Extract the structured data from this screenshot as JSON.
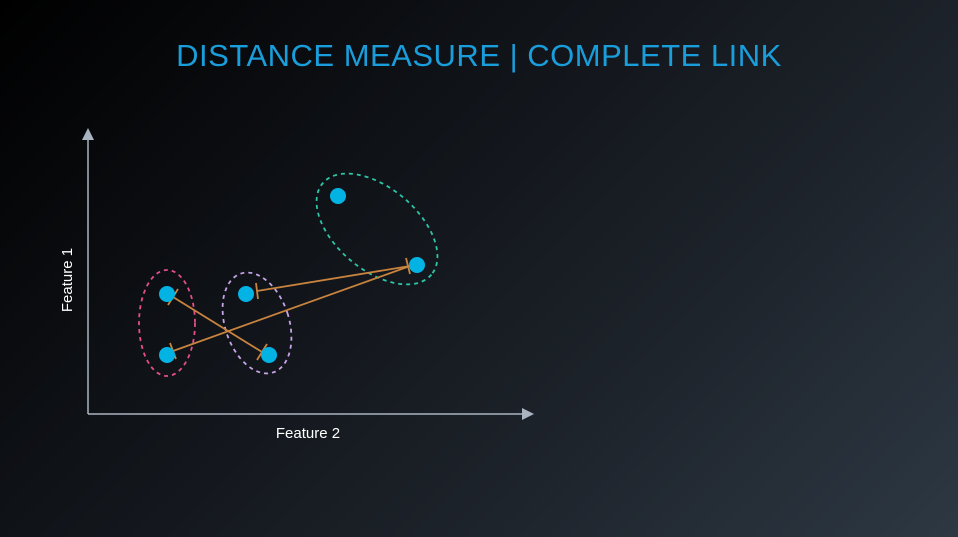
{
  "title": "DISTANCE MEASURE | COMPLETE LINK",
  "axes": {
    "x_label": "Feature 2",
    "y_label": "Feature 1"
  },
  "colors": {
    "point": "#02b3e4",
    "link": "#c8843f",
    "axis": "#aab4c0",
    "cluster_pink": "#e64d8c",
    "cluster_purple": "#c7a4e8",
    "cluster_teal": "#2ec4a6"
  },
  "clusters": [
    {
      "name": "pink",
      "points": 2
    },
    {
      "name": "purple",
      "points": 2
    },
    {
      "name": "teal",
      "points": 2
    }
  ]
}
